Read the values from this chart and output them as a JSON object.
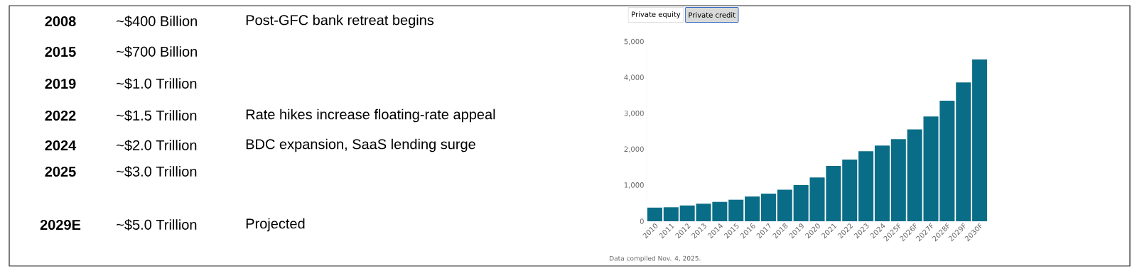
{
  "chart_data": [
    {
      "type": "other",
      "cell_labels": [
        [
          "2008",
          "~$400 Billion",
          "Post-GFC bank retreat begins"
        ],
        [
          "2015",
          "~$700 Billion",
          null
        ],
        [
          "2019",
          "~$1.0 Trillion",
          null
        ],
        [
          "2022",
          "~$1.5 Trillion",
          "Rate hikes increase floating-rate appeal"
        ],
        [
          "2024",
          "~$2.0 Trillion",
          "BDC expansion, SaaS lending surge"
        ],
        [
          "2025",
          "~$3.0 Trillion",
          null
        ],
        [
          "2029E",
          "~$5.0 Trillion",
          "Projected"
        ]
      ]
    },
    {
      "type": "bar",
      "categories": [
        "2010",
        "2011",
        "2012",
        "2013",
        "2014",
        "2015",
        "2016",
        "2017",
        "2018",
        "2019",
        "2020",
        "2021",
        "2022",
        "2023",
        "2024",
        "2025F",
        "2026F",
        "2027F",
        "2028F",
        "2029F",
        "2030F"
      ],
      "values": [
        380,
        390,
        440,
        490,
        540,
        600,
        690,
        770,
        880,
        1010,
        1220,
        1540,
        1720,
        1950,
        2110,
        2290,
        2560,
        2920,
        3360,
        3870,
        4510
      ],
      "color": "#0a6d87",
      "ylim": [
        0,
        5000
      ],
      "yticks": [
        0,
        {
          "value": 1000,
          "label": "1,000"
        },
        {
          "value": 2000,
          "label": "2,000"
        },
        {
          "value": 3000,
          "label": "3,000"
        },
        {
          "value": 4000,
          "label": "4,000"
        },
        {
          "value": 5000,
          "label": "5,000"
        }
      ],
      "grid": false,
      "annotations": [
        "Private equity",
        "Private credit",
        "Data compiled Nov. 4, 2025."
      ]
    }
  ]
}
